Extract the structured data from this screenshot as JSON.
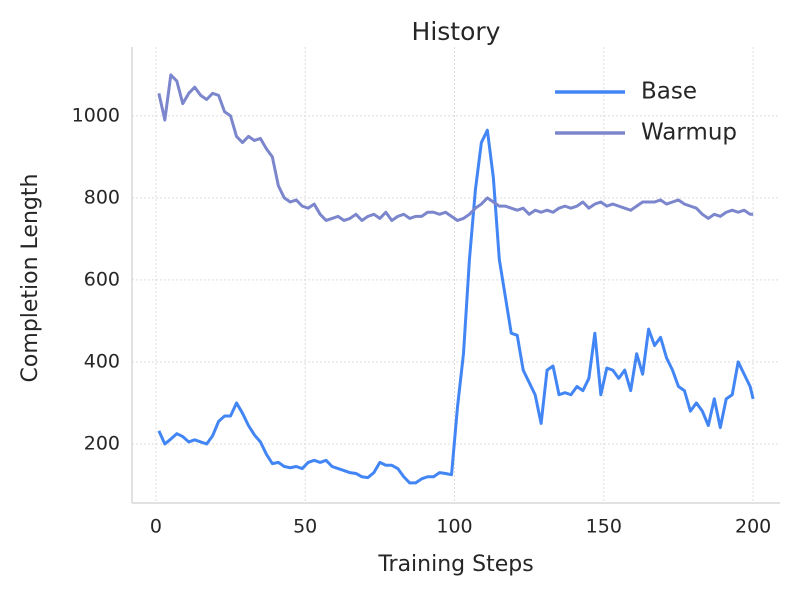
{
  "chart_data": {
    "type": "line",
    "title": "History",
    "x_label": "Training Steps",
    "y_label": "Completion Length",
    "x": [
      1,
      3,
      5,
      7,
      9,
      11,
      13,
      15,
      17,
      19,
      21,
      23,
      25,
      27,
      29,
      31,
      33,
      35,
      37,
      39,
      41,
      43,
      45,
      47,
      49,
      51,
      53,
      55,
      57,
      59,
      61,
      63,
      65,
      67,
      69,
      71,
      73,
      75,
      77,
      79,
      81,
      83,
      85,
      87,
      89,
      91,
      93,
      95,
      97,
      99,
      101,
      103,
      105,
      107,
      109,
      111,
      113,
      115,
      117,
      119,
      121,
      123,
      125,
      127,
      129,
      131,
      133,
      135,
      137,
      139,
      141,
      143,
      145,
      147,
      149,
      151,
      153,
      155,
      157,
      159,
      161,
      163,
      165,
      167,
      169,
      171,
      173,
      175,
      177,
      179,
      181,
      183,
      185,
      187,
      189,
      191,
      193,
      195,
      197,
      199,
      200
    ],
    "series": [
      {
        "name": "Base",
        "color": "#4285f4",
        "values": [
          232,
          200,
          212,
          225,
          218,
          205,
          210,
          205,
          200,
          220,
          255,
          268,
          268,
          300,
          275,
          245,
          222,
          205,
          175,
          152,
          155,
          145,
          142,
          145,
          140,
          155,
          160,
          155,
          160,
          145,
          140,
          135,
          130,
          128,
          120,
          118,
          130,
          155,
          148,
          148,
          140,
          120,
          105,
          105,
          115,
          120,
          120,
          130,
          128,
          125,
          290,
          420,
          650,
          820,
          935,
          965,
          850,
          650,
          560,
          470,
          465,
          380,
          350,
          320,
          250,
          380,
          390,
          320,
          325,
          320,
          340,
          330,
          360,
          470,
          320,
          385,
          380,
          360,
          380,
          330,
          420,
          370,
          480,
          440,
          460,
          410,
          380,
          340,
          330,
          280,
          300,
          280,
          245,
          310,
          240,
          310,
          320,
          400,
          370,
          340,
          310
        ]
      },
      {
        "name": "Warmup",
        "color": "#7b86cc",
        "values": [
          1055,
          990,
          1100,
          1085,
          1030,
          1055,
          1070,
          1050,
          1040,
          1055,
          1050,
          1010,
          1000,
          950,
          935,
          950,
          940,
          945,
          920,
          900,
          830,
          800,
          790,
          795,
          780,
          775,
          785,
          760,
          745,
          750,
          755,
          745,
          750,
          760,
          745,
          755,
          760,
          750,
          765,
          745,
          755,
          760,
          750,
          755,
          755,
          765,
          765,
          760,
          765,
          755,
          745,
          750,
          760,
          775,
          785,
          800,
          790,
          780,
          780,
          775,
          770,
          775,
          760,
          770,
          765,
          770,
          765,
          775,
          780,
          775,
          780,
          790,
          775,
          785,
          790,
          780,
          785,
          780,
          775,
          770,
          780,
          790,
          790,
          790,
          795,
          785,
          790,
          795,
          785,
          780,
          775,
          760,
          750,
          760,
          755,
          765,
          770,
          765,
          770,
          760,
          760
        ]
      }
    ],
    "xlim": [
      -8,
      209
    ],
    "ylim": [
      56,
      1168
    ],
    "xticks": [
      0,
      50,
      100,
      150,
      200
    ],
    "yticks": [
      200,
      400,
      600,
      800,
      1000
    ],
    "grid": true,
    "legend": "upper right"
  }
}
